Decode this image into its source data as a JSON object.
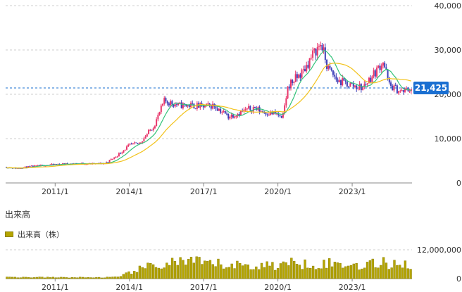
{
  "chart_data": [
    {
      "type": "candlestick",
      "title": "",
      "xlabel": "",
      "ylabel": "",
      "x_ticks": [
        "2011/1",
        "2014/1",
        "2017/1",
        "2020/1",
        "2023/1"
      ],
      "y_ticks": [
        "0",
        "10,000",
        "20,000",
        "30,000",
        "40,000"
      ],
      "ylim": [
        0,
        40000
      ],
      "xlim": [
        "2009/1",
        "2025/6"
      ],
      "current_value": 21425,
      "current_label": "21,425",
      "colors": {
        "up": "#e8356a",
        "down": "#3d3fb8",
        "ma_short": "#33c27a",
        "ma_long": "#f2c21a",
        "marker": "#1a6fd1"
      },
      "price_path": [
        [
          "2009/1",
          3600
        ],
        [
          "2009/6",
          3300
        ],
        [
          "2010/1",
          3700
        ],
        [
          "2010/6",
          3900
        ],
        [
          "2011/1",
          4200
        ],
        [
          "2011/6",
          4300
        ],
        [
          "2012/1",
          4400
        ],
        [
          "2012/6",
          4300
        ],
        [
          "2013/1",
          4400
        ],
        [
          "2013/6",
          5800
        ],
        [
          "2014/1",
          8500
        ],
        [
          "2014/6",
          9000
        ],
        [
          "2015/1",
          13000
        ],
        [
          "2015/6",
          18500
        ],
        [
          "2016/1",
          17500
        ],
        [
          "2016/6",
          17500
        ],
        [
          "2017/1",
          17200
        ],
        [
          "2017/6",
          17500
        ],
        [
          "2018/1",
          15000
        ],
        [
          "2018/6",
          15800
        ],
        [
          "2019/1",
          17000
        ],
        [
          "2019/6",
          16000
        ],
        [
          "2020/1",
          15500
        ],
        [
          "2020/3",
          14000
        ],
        [
          "2020/6",
          22000
        ],
        [
          "2021/1",
          25000
        ],
        [
          "2021/6",
          29000
        ],
        [
          "2021/10",
          31500
        ],
        [
          "2022/1",
          26000
        ],
        [
          "2022/6",
          23000
        ],
        [
          "2023/1",
          22000
        ],
        [
          "2023/6",
          21500
        ],
        [
          "2024/1",
          25500
        ],
        [
          "2024/4",
          27500
        ],
        [
          "2024/7",
          22000
        ],
        [
          "2025/1",
          20500
        ],
        [
          "2025/6",
          21425
        ]
      ]
    },
    {
      "type": "bar",
      "title": "出来高",
      "legend": "出来高（株）",
      "x_ticks": [
        "2011/1",
        "2014/1",
        "2017/1",
        "2020/1",
        "2023/1"
      ],
      "y_ticks": [
        "0",
        "12,000,000"
      ],
      "ylim": [
        0,
        12000000
      ],
      "colors": {
        "bar": "#b5a500",
        "edge": "#8c8000"
      },
      "volume_path": [
        [
          "2009/1",
          600000
        ],
        [
          "2011/1",
          500000
        ],
        [
          "2013/1",
          500000
        ],
        [
          "2013/9",
          700000
        ],
        [
          "2014/1",
          3000000
        ],
        [
          "2015/1",
          5500000
        ],
        [
          "2016/1",
          7500000
        ],
        [
          "2017/1",
          6500000
        ],
        [
          "2018/1",
          6000000
        ],
        [
          "2019/1",
          5500000
        ],
        [
          "2020/1",
          6000000
        ],
        [
          "2021/1",
          7000000
        ],
        [
          "2022/1",
          6500000
        ],
        [
          "2023/1",
          6000000
        ],
        [
          "2024/1",
          6500000
        ],
        [
          "2025/1",
          7000000
        ],
        [
          "2025/6",
          5500000
        ]
      ]
    }
  ]
}
